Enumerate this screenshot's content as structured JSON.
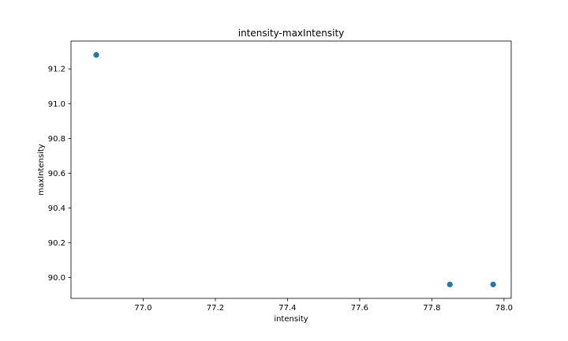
{
  "chart_data": {
    "type": "scatter",
    "title": "intensity-maxIntensity",
    "xlabel": "intensity",
    "ylabel": "maxIntensity",
    "xlim": [
      76.8,
      78.02
    ],
    "ylim": [
      89.88,
      91.36
    ],
    "xticks": [
      "77.0",
      "77.2",
      "77.4",
      "77.6",
      "77.8",
      "78.0"
    ],
    "yticks": [
      "90.0",
      "90.2",
      "90.4",
      "90.6",
      "90.8",
      "91.0",
      "91.2"
    ],
    "grid": false,
    "series": [
      {
        "color": "#1f77b4",
        "points": [
          {
            "x": 76.87,
            "y": 91.28
          },
          {
            "x": 77.85,
            "y": 89.96
          },
          {
            "x": 77.97,
            "y": 89.96
          }
        ]
      }
    ]
  }
}
